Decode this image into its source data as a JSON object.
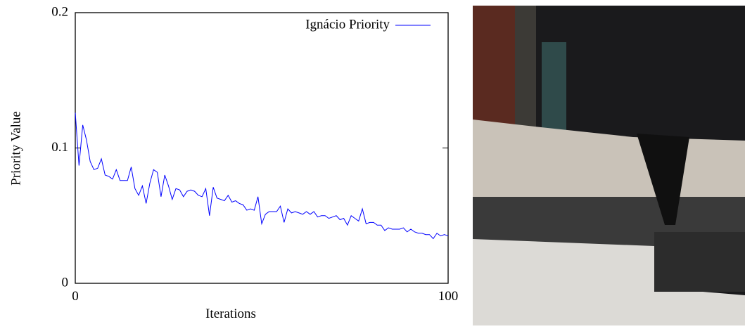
{
  "chart_data": {
    "type": "line",
    "xlabel": "Iterations",
    "ylabel": "Priority Value",
    "x": [
      0,
      1,
      2,
      3,
      4,
      5,
      6,
      7,
      8,
      9,
      10,
      11,
      12,
      13,
      14,
      15,
      16,
      17,
      18,
      19,
      20,
      21,
      22,
      23,
      24,
      25,
      26,
      27,
      28,
      29,
      30,
      31,
      32,
      33,
      34,
      35,
      36,
      37,
      38,
      39,
      40,
      41,
      42,
      43,
      44,
      45,
      46,
      47,
      48,
      49,
      50,
      51,
      52,
      53,
      54,
      55,
      56,
      57,
      58,
      59,
      60,
      61,
      62,
      63,
      64,
      65,
      66,
      67,
      68,
      69,
      70,
      71,
      72,
      73,
      74,
      75,
      76,
      77,
      78,
      79,
      80,
      81,
      82,
      83,
      84,
      85,
      86,
      87,
      88,
      89,
      90,
      91,
      92,
      93,
      94,
      95,
      96,
      97,
      98,
      99,
      100
    ],
    "series": [
      {
        "name": "Ignácio Priority",
        "color": "#0000ff",
        "values": [
          0.126,
          0.087,
          0.117,
          0.106,
          0.09,
          0.084,
          0.085,
          0.092,
          0.08,
          0.079,
          0.077,
          0.084,
          0.076,
          0.076,
          0.076,
          0.086,
          0.07,
          0.065,
          0.072,
          0.059,
          0.074,
          0.084,
          0.082,
          0.064,
          0.08,
          0.072,
          0.062,
          0.07,
          0.069,
          0.064,
          0.068,
          0.069,
          0.068,
          0.065,
          0.064,
          0.07,
          0.05,
          0.071,
          0.063,
          0.062,
          0.061,
          0.065,
          0.06,
          0.061,
          0.059,
          0.058,
          0.054,
          0.055,
          0.054,
          0.064,
          0.044,
          0.051,
          0.053,
          0.053,
          0.053,
          0.057,
          0.045,
          0.055,
          0.052,
          0.053,
          0.052,
          0.051,
          0.053,
          0.051,
          0.053,
          0.049,
          0.05,
          0.05,
          0.048,
          0.049,
          0.05,
          0.047,
          0.048,
          0.043,
          0.05,
          0.048,
          0.046,
          0.055,
          0.044,
          0.045,
          0.045,
          0.043,
          0.043,
          0.039,
          0.041,
          0.04,
          0.04,
          0.04,
          0.041,
          0.038,
          0.04,
          0.038,
          0.037,
          0.037,
          0.036,
          0.036,
          0.033,
          0.037,
          0.035,
          0.036,
          0.035
        ]
      }
    ],
    "xlim": [
      0,
      100
    ],
    "xticks": [
      0,
      100
    ],
    "ylim": [
      0,
      0.2
    ],
    "yticks": [
      0,
      0.1,
      0.2
    ],
    "legend": "top-right"
  }
}
